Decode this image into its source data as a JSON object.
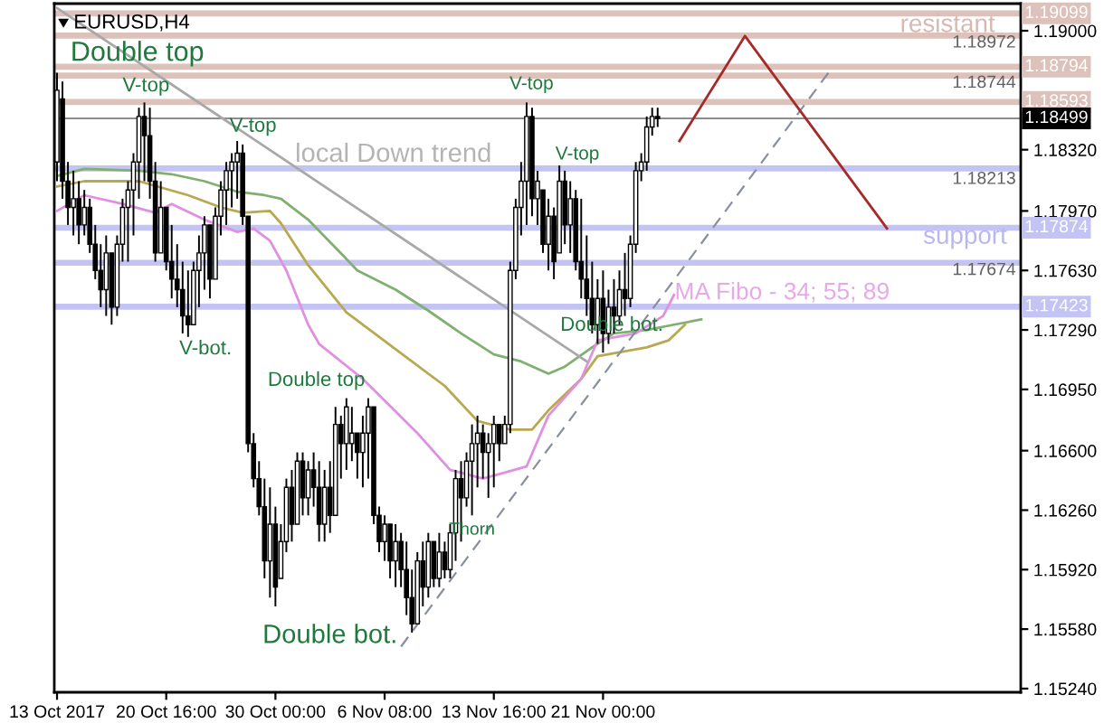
{
  "chart_data": {
    "type": "candlestick",
    "title": "EURUSD,H4",
    "color": "#000000",
    "categories": [
      "13 Oct 2017",
      null,
      null,
      null,
      null,
      null,
      null,
      null,
      null,
      null,
      null,
      null,
      null,
      null,
      null,
      null,
      null,
      null,
      null,
      null,
      "20 Oct 16:00",
      null,
      null,
      null,
      null,
      null,
      null,
      null,
      null,
      null,
      null,
      null,
      null,
      null,
      null,
      null,
      null,
      null,
      null,
      null,
      "30 Oct 00:00",
      null,
      null,
      null,
      null,
      null,
      null,
      null,
      null,
      null,
      null,
      null,
      null,
      null,
      null,
      null,
      null,
      null,
      null,
      null,
      "6 Nov 08:00",
      null,
      null,
      null,
      null,
      null,
      null,
      null,
      null,
      null,
      null,
      null,
      null,
      null,
      null,
      null,
      null,
      null,
      null,
      null,
      "13 Nov 16:00",
      null,
      null,
      null,
      null,
      null,
      null,
      null,
      null,
      null,
      null,
      null,
      null,
      null,
      null,
      null,
      null,
      null,
      null,
      null,
      "21 Nov 00:00",
      null,
      null,
      null,
      null,
      null,
      null,
      null,
      null,
      null,
      null,
      null,
      null,
      null,
      null,
      null,
      null,
      null,
      null,
      null,
      null,
      null,
      null,
      null,
      null,
      null,
      null,
      null,
      null,
      null,
      null,
      null,
      null,
      null,
      null,
      null,
      null,
      null,
      null,
      null,
      null,
      null,
      null,
      null,
      null,
      null,
      null,
      null,
      null,
      null,
      null,
      null,
      null,
      null,
      null,
      null,
      null,
      null,
      null,
      null,
      null,
      null,
      null,
      null,
      null,
      null,
      null,
      null,
      null,
      null,
      null,
      null,
      null,
      null,
      null,
      null,
      null
    ],
    "ohlc": [
      [
        1.1825,
        1.1876,
        1.1814,
        1.1866
      ],
      [
        1.1861,
        1.1871,
        1.1804,
        1.1814
      ],
      [
        1.1814,
        1.1825,
        1.1789,
        1.1799
      ],
      [
        1.1799,
        1.182,
        1.1783,
        1.1804
      ],
      [
        1.1804,
        1.1814,
        1.1778,
        1.1789
      ],
      [
        1.1789,
        1.1809,
        1.1783,
        1.1799
      ],
      [
        1.1799,
        1.1804,
        1.1773,
        1.1778
      ],
      [
        1.1778,
        1.1789,
        1.1758,
        1.1763
      ],
      [
        1.1763,
        1.1778,
        1.1742,
        1.1752
      ],
      [
        1.1752,
        1.1783,
        1.1737,
        1.1773
      ],
      [
        1.1773,
        1.1773,
        1.1732,
        1.1742
      ],
      [
        1.1742,
        1.1783,
        1.1737,
        1.1778
      ],
      [
        1.1778,
        1.1804,
        1.1768,
        1.1799
      ],
      [
        1.1799,
        1.1814,
        1.1768,
        1.1809
      ],
      [
        1.1809,
        1.183,
        1.1783,
        1.1825
      ],
      [
        1.1825,
        1.1856,
        1.1804,
        1.1851
      ],
      [
        1.1851,
        1.1859,
        1.1814,
        1.184
      ],
      [
        1.184,
        1.1856,
        1.1804,
        1.1814
      ],
      [
        1.1814,
        1.1825,
        1.1768,
        1.1773
      ],
      [
        1.1773,
        1.1814,
        1.1773,
        1.1799
      ],
      [
        1.1799,
        1.1799,
        1.1763,
        1.1768
      ],
      [
        1.1768,
        1.1789,
        1.1747,
        1.1758
      ],
      [
        1.1758,
        1.1778,
        1.1742,
        1.1752
      ],
      [
        1.1752,
        1.1768,
        1.1727,
        1.1737
      ],
      [
        1.1737,
        1.1763,
        1.1725,
        1.1732
      ],
      [
        1.1732,
        1.1768,
        1.1732,
        1.1763
      ],
      [
        1.1763,
        1.1783,
        1.1742,
        1.1773
      ],
      [
        1.1773,
        1.1794,
        1.1752,
        1.1789
      ],
      [
        1.1789,
        1.1789,
        1.1747,
        1.1758
      ],
      [
        1.1758,
        1.1799,
        1.1758,
        1.1794
      ],
      [
        1.1794,
        1.1814,
        1.1783,
        1.1809
      ],
      [
        1.1809,
        1.1825,
        1.1789,
        1.182
      ],
      [
        1.182,
        1.183,
        1.1799,
        1.1825
      ],
      [
        1.1825,
        1.1837,
        1.1804,
        1.183
      ],
      [
        1.183,
        1.1835,
        1.1789,
        1.1794
      ],
      [
        1.1794,
        1.1794,
        1.1659,
        1.1664
      ],
      [
        1.1664,
        1.167,
        1.1639,
        1.1644
      ],
      [
        1.1644,
        1.1654,
        1.1623,
        1.1628
      ],
      [
        1.1628,
        1.1644,
        1.1587,
        1.1597
      ],
      [
        1.1597,
        1.1639,
        1.1576,
        1.1618
      ],
      [
        1.1618,
        1.1628,
        1.1571,
        1.1582
      ],
      [
        1.1587,
        1.1618,
        1.1587,
        1.1608
      ],
      [
        1.1608,
        1.1644,
        1.1602,
        1.1639
      ],
      [
        1.1639,
        1.1649,
        1.1608,
        1.1618
      ],
      [
        1.1618,
        1.1659,
        1.1618,
        1.1654
      ],
      [
        1.1654,
        1.1659,
        1.1623,
        1.1633
      ],
      [
        1.1633,
        1.1654,
        1.1623,
        1.1649
      ],
      [
        1.1649,
        1.1659,
        1.1628,
        1.1639
      ],
      [
        1.1639,
        1.1654,
        1.1608,
        1.1618
      ],
      [
        1.1618,
        1.1649,
        1.1608,
        1.1639
      ],
      [
        1.1639,
        1.1654,
        1.1613,
        1.1623
      ],
      [
        1.1623,
        1.1685,
        1.1623,
        1.1675
      ],
      [
        1.1675,
        1.168,
        1.1644,
        1.1664
      ],
      [
        1.1664,
        1.169,
        1.1649,
        1.1685
      ],
      [
        1.1664,
        1.1685,
        1.1654,
        1.167
      ],
      [
        1.167,
        1.167,
        1.1644,
        1.1659
      ],
      [
        1.1659,
        1.168,
        1.1639,
        1.167
      ],
      [
        1.167,
        1.169,
        1.1644,
        1.1685
      ],
      [
        1.1685,
        1.1685,
        1.1618,
        1.1623
      ],
      [
        1.1623,
        1.1628,
        1.1602,
        1.1608
      ],
      [
        1.1608,
        1.1623,
        1.1597,
        1.1618
      ],
      [
        1.1618,
        1.1618,
        1.1587,
        1.1597
      ],
      [
        1.1597,
        1.1618,
        1.1582,
        1.1608
      ],
      [
        1.1608,
        1.1613,
        1.1582,
        1.1592
      ],
      [
        1.1592,
        1.1608,
        1.1566,
        1.1576
      ],
      [
        1.1576,
        1.1592,
        1.1556,
        1.1561
      ],
      [
        1.1561,
        1.1602,
        1.1561,
        1.1597
      ],
      [
        1.1597,
        1.1608,
        1.1571,
        1.1582
      ],
      [
        1.1582,
        1.1613,
        1.1576,
        1.1608
      ],
      [
        1.1608,
        1.1608,
        1.1582,
        1.1587
      ],
      [
        1.1587,
        1.1613,
        1.1582,
        1.1602
      ],
      [
        1.1602,
        1.1608,
        1.1587,
        1.1592
      ],
      [
        1.1592,
        1.1618,
        1.1587,
        1.1613
      ],
      [
        1.1613,
        1.1649,
        1.1597,
        1.1644
      ],
      [
        1.1644,
        1.1654,
        1.1608,
        1.1633
      ],
      [
        1.1633,
        1.1659,
        1.1628,
        1.1654
      ],
      [
        1.1654,
        1.1675,
        1.1623,
        1.1664
      ],
      [
        1.1664,
        1.168,
        1.1639,
        1.167
      ],
      [
        1.167,
        1.1675,
        1.1644,
        1.1659
      ],
      [
        1.1659,
        1.167,
        1.1633,
        1.1664
      ],
      [
        1.1664,
        1.168,
        1.1639,
        1.1675
      ],
      [
        1.1675,
        1.1675,
        1.1654,
        1.1664
      ],
      [
        1.1664,
        1.168,
        1.1664,
        1.1675
      ],
      [
        1.1675,
        1.1768,
        1.167,
        1.1763
      ],
      [
        1.1763,
        1.1804,
        1.1758,
        1.1799
      ],
      [
        1.1799,
        1.1825,
        1.1783,
        1.1814
      ],
      [
        1.1814,
        1.1859,
        1.1789,
        1.1851
      ],
      [
        1.1851,
        1.1856,
        1.1794,
        1.1804
      ],
      [
        1.1804,
        1.182,
        1.1789,
        1.1814
      ],
      [
        1.1809,
        1.1809,
        1.1773,
        1.1778
      ],
      [
        1.1778,
        1.1804,
        1.1763,
        1.1794
      ],
      [
        1.1794,
        1.1799,
        1.1758,
        1.1768
      ],
      [
        1.1773,
        1.1823,
        1.1773,
        1.1814
      ],
      [
        1.1814,
        1.182,
        1.1778,
        1.1789
      ],
      [
        1.1789,
        1.1814,
        1.1773,
        1.1804
      ],
      [
        1.1804,
        1.1809,
        1.1763,
        1.1768
      ],
      [
        1.1768,
        1.1804,
        1.1747,
        1.1758
      ],
      [
        1.1758,
        1.1783,
        1.1737,
        1.1747
      ],
      [
        1.1747,
        1.1768,
        1.1727,
        1.1732
      ],
      [
        1.1732,
        1.1758,
        1.1721,
        1.1747
      ],
      [
        1.1747,
        1.1763,
        1.1716,
        1.1727
      ],
      [
        1.1727,
        1.1752,
        1.1721,
        1.1742
      ],
      [
        1.1742,
        1.1758,
        1.1727,
        1.1737
      ],
      [
        1.1737,
        1.1763,
        1.1732,
        1.1752
      ],
      [
        1.1752,
        1.1773,
        1.1737,
        1.1747
      ],
      [
        1.1747,
        1.1783,
        1.1742,
        1.1778
      ],
      [
        1.1778,
        1.1825,
        1.1773,
        1.182
      ],
      [
        1.182,
        1.183,
        1.1814,
        1.1825
      ],
      [
        1.1825,
        1.1851,
        1.182,
        1.1845
      ],
      [
        1.1845,
        1.1856,
        1.184,
        1.1851
      ],
      [
        1.1851,
        1.1856,
        1.1845,
        1.18499
      ],
      null,
      null,
      null,
      null,
      null,
      null,
      null,
      null,
      null,
      null,
      null,
      null,
      null,
      null,
      null,
      null,
      null,
      null,
      null,
      null,
      null,
      null,
      null,
      null,
      null,
      null,
      null,
      null,
      null,
      null,
      null,
      null,
      null,
      null,
      null,
      null,
      null,
      null,
      null,
      null,
      null,
      null,
      null,
      null,
      null,
      null,
      null,
      null,
      null,
      null,
      null,
      null,
      null,
      null,
      null,
      null,
      null,
      null,
      null,
      null,
      null,
      null,
      null,
      null,
      null,
      null
    ],
    "series": [
      {
        "type": "line",
        "color": "#80b070",
        "values": [
          1.1817,
          null,
          null,
          null,
          null,
          1.1821,
          null,
          null,
          null,
          null,
          null,
          null,
          null,
          null,
          null,
          1.182,
          null,
          null,
          null,
          null,
          null,
          1.1818,
          null,
          null,
          null,
          null,
          null,
          1.1814,
          null,
          null,
          null,
          null,
          null,
          1.1808,
          null,
          null,
          null,
          null,
          1.1806,
          null,
          null,
          1.1804,
          null,
          null,
          null,
          null,
          1.1792,
          null,
          null,
          null,
          null,
          1.1776,
          null,
          null,
          null,
          1.1763,
          null,
          null,
          null,
          null,
          null,
          null,
          1.1752,
          null,
          null,
          null,
          null,
          null,
          1.174,
          null,
          null,
          null,
          null,
          null,
          1.1727,
          null,
          null,
          null,
          null,
          null,
          1.1715,
          null,
          null,
          null,
          null,
          1.1711,
          null,
          null,
          null,
          null,
          1.1704,
          null,
          null,
          1.1708,
          null,
          null,
          null,
          null,
          1.1719,
          null,
          null,
          null,
          1.1727,
          null,
          null,
          null,
          null,
          null,
          1.1729,
          null,
          null,
          null,
          null,
          1.1732,
          null,
          null,
          null,
          null,
          1.1735,
          null,
          null,
          null,
          null,
          null,
          null,
          null,
          null,
          null,
          null,
          null,
          null,
          null,
          null,
          null,
          null,
          null,
          null,
          null,
          null,
          null,
          null,
          null,
          null,
          null,
          null,
          null,
          null,
          null,
          null,
          null,
          null,
          null,
          null,
          null,
          null,
          null,
          null,
          null,
          null,
          null,
          null,
          null,
          null,
          null,
          null,
          null,
          null,
          null,
          null,
          null,
          null,
          null,
          null,
          null,
          null,
          null,
          null
        ]
      },
      {
        "type": "line",
        "color": "#b8a850",
        "values": [
          1.1811,
          null,
          null,
          null,
          null,
          1.1814,
          null,
          null,
          null,
          null,
          null,
          null,
          null,
          null,
          null,
          1.1814,
          null,
          null,
          null,
          null,
          null,
          null,
          null,
          null,
          1.1806,
          null,
          null,
          null,
          null,
          null,
          1.1799,
          null,
          null,
          null,
          1.1796,
          null,
          null,
          null,
          null,
          1.1797,
          null,
          1.179,
          null,
          null,
          null,
          null,
          1.1766,
          null,
          null,
          null,
          null,
          null,
          null,
          1.1739,
          null,
          null,
          null,
          null,
          null,
          null,
          null,
          null,
          1.1718,
          null,
          null,
          null,
          null,
          null,
          null,
          null,
          null,
          1.1697,
          null,
          null,
          null,
          null,
          null,
          1.1677,
          null,
          null,
          null,
          null,
          null,
          1.1672,
          null,
          null,
          null,
          1.1672,
          null,
          null,
          1.1683,
          null,
          null,
          null,
          null,
          null,
          1.1701,
          null,
          null,
          1.1714,
          null,
          null,
          null,
          null,
          null,
          null,
          null,
          null,
          1.1719,
          null,
          null,
          null,
          1.1723,
          null,
          null,
          1.1732,
          null,
          null,
          null,
          null,
          null,
          null,
          null,
          null,
          null,
          null,
          null,
          null,
          null,
          null,
          null,
          null,
          null,
          null,
          null,
          null,
          null,
          null,
          null,
          null,
          null,
          null,
          null,
          null,
          null,
          null,
          null,
          null,
          null,
          null,
          null,
          null,
          null,
          null,
          null,
          null,
          null,
          null,
          null,
          null,
          null,
          null,
          null,
          null,
          null,
          null,
          null,
          null,
          null,
          null,
          null,
          null,
          null,
          null,
          null,
          null,
          null
        ]
      },
      {
        "type": "line",
        "color": "#e090e0",
        "values": [
          1.1797,
          null,
          null,
          null,
          null,
          1.1806,
          null,
          null,
          null,
          null,
          null,
          null,
          1.1801,
          null,
          null,
          null,
          null,
          null,
          1.1796,
          null,
          null,
          1.1801,
          null,
          null,
          null,
          null,
          null,
          1.1792,
          null,
          null,
          null,
          null,
          null,
          1.1785,
          null,
          null,
          1.1787,
          null,
          null,
          1.178,
          null,
          null,
          1.1763,
          null,
          null,
          null,
          1.1732,
          null,
          1.1721,
          null,
          null,
          null,
          null,
          null,
          null,
          null,
          1.1701,
          null,
          null,
          null,
          null,
          null,
          null,
          null,
          null,
          null,
          1.167,
          null,
          null,
          null,
          null,
          null,
          1.1649,
          null,
          null,
          null,
          null,
          null,
          1.1644,
          null,
          null,
          null,
          null,
          null,
          null,
          null,
          1.1651,
          null,
          null,
          null,
          1.168,
          null,
          null,
          null,
          null,
          null,
          1.1701,
          null,
          null,
          1.1723,
          null,
          null,
          null,
          null,
          null,
          null,
          1.1727,
          null,
          null,
          null,
          null,
          1.1737,
          null,
          1.1749,
          null,
          null,
          null,
          null,
          null,
          null,
          null,
          null,
          null,
          null,
          null,
          null,
          null,
          null,
          null,
          null,
          null,
          null,
          null,
          null,
          null,
          null,
          null,
          null,
          null,
          null,
          null,
          null,
          null,
          null,
          null,
          null,
          null,
          null,
          null,
          null,
          null,
          null,
          null,
          null,
          null,
          null,
          null,
          null,
          null,
          null,
          null,
          null,
          null,
          null,
          null,
          null,
          null,
          null,
          null,
          null,
          null,
          null,
          null,
          null,
          null,
          null,
          null
        ]
      },
      {
        "type": "line",
        "color": "#a8a8a8",
        "values": [
          1.1913,
          null,
          null,
          null,
          null,
          null,
          null,
          null,
          null,
          null,
          null,
          null,
          null,
          null,
          null,
          null,
          null,
          null,
          null,
          null,
          null,
          null,
          null,
          null,
          null,
          null,
          null,
          null,
          null,
          null,
          null,
          null,
          null,
          null,
          null,
          null,
          null,
          null,
          null,
          null,
          null,
          null,
          null,
          null,
          null,
          null,
          null,
          null,
          null,
          null,
          null,
          null,
          null,
          null,
          null,
          null,
          null,
          null,
          null,
          null,
          null,
          null,
          null,
          null,
          null,
          null,
          null,
          null,
          null,
          null,
          null,
          null,
          null,
          null,
          null,
          null,
          null,
          null,
          null,
          null,
          null,
          null,
          null,
          null,
          null,
          null,
          null,
          null,
          null,
          null,
          null,
          null,
          null,
          null,
          null,
          null,
          null,
          1.1711,
          null,
          null,
          null,
          null,
          null,
          null,
          null,
          null,
          null,
          null,
          null,
          null,
          null,
          null,
          null,
          null,
          null,
          null,
          null,
          null,
          null,
          null,
          null,
          null,
          null,
          null,
          null,
          null,
          null,
          null,
          null,
          null,
          null,
          null,
          null,
          null,
          null,
          null,
          null,
          null,
          null,
          null,
          null,
          null,
          null,
          null,
          null,
          null,
          null,
          null,
          null,
          null,
          null,
          null,
          null,
          null,
          null,
          null,
          null,
          null,
          null,
          null,
          null,
          null,
          null,
          null,
          null,
          null,
          null,
          null,
          null,
          null,
          null,
          null,
          null,
          null,
          null,
          null,
          null
        ]
      },
      {
        "type": "line",
        "color": "#8890a0",
        "line_style": "dashed",
        "values": [
          null,
          null,
          null,
          null,
          null,
          null,
          null,
          null,
          null,
          null,
          null,
          null,
          null,
          null,
          null,
          null,
          null,
          null,
          null,
          null,
          null,
          null,
          null,
          null,
          null,
          null,
          null,
          null,
          null,
          null,
          null,
          null,
          null,
          null,
          null,
          null,
          null,
          null,
          null,
          null,
          null,
          null,
          null,
          null,
          null,
          null,
          null,
          null,
          null,
          null,
          null,
          null,
          null,
          null,
          null,
          null,
          null,
          null,
          null,
          null,
          null,
          null,
          null,
          1.1548,
          null,
          null,
          null,
          null,
          null,
          null,
          null,
          null,
          null,
          null,
          null,
          null,
          null,
          null,
          null,
          null,
          null,
          null,
          null,
          null,
          null,
          null,
          null,
          null,
          null,
          null,
          null,
          null,
          null,
          null,
          null,
          null,
          null,
          null,
          null,
          null,
          null,
          null,
          null,
          null,
          null,
          null,
          null,
          null,
          null,
          null,
          null,
          null,
          null,
          null,
          null,
          null,
          null,
          null,
          null,
          null,
          null,
          null,
          null,
          null,
          null,
          null,
          null,
          null,
          null,
          null,
          null,
          null,
          null,
          null,
          null,
          null,
          null,
          null,
          null,
          null,
          null,
          null,
          1.1879,
          null,
          null,
          null,
          null,
          null,
          null,
          null,
          null,
          null,
          null,
          null,
          null,
          null,
          null,
          null,
          null,
          null,
          null,
          null,
          null,
          null,
          null,
          null,
          null,
          null,
          null,
          null,
          null,
          null,
          null,
          null,
          null,
          null,
          null
        ]
      },
      {
        "type": "line",
        "color": "#a52a2a",
        "values": [
          null,
          null,
          null,
          null,
          null,
          null,
          null,
          null,
          null,
          null,
          null,
          null,
          null,
          null,
          null,
          null,
          null,
          null,
          null,
          null,
          null,
          null,
          null,
          null,
          null,
          null,
          null,
          null,
          null,
          null,
          null,
          null,
          null,
          null,
          null,
          null,
          null,
          null,
          null,
          null,
          null,
          null,
          null,
          null,
          null,
          null,
          null,
          null,
          null,
          null,
          null,
          null,
          null,
          null,
          null,
          null,
          null,
          null,
          null,
          null,
          null,
          null,
          null,
          null,
          null,
          null,
          null,
          null,
          null,
          null,
          null,
          null,
          null,
          null,
          null,
          null,
          null,
          null,
          null,
          null,
          null,
          null,
          null,
          null,
          null,
          null,
          null,
          null,
          null,
          null,
          null,
          null,
          null,
          null,
          null,
          null,
          null,
          null,
          null,
          null,
          null,
          null,
          null,
          null,
          null,
          null,
          null,
          null,
          null,
          null,
          null,
          null,
          null,
          null,
          1.1837,
          null,
          null,
          null,
          null,
          null,
          null,
          null,
          null,
          null,
          null,
          null,
          1.1897,
          null,
          null,
          null,
          null,
          null,
          null,
          null,
          null,
          null,
          null,
          null,
          null,
          null,
          null,
          null,
          null,
          null,
          null,
          null,
          null,
          null,
          null,
          null,
          null,
          null,
          1.1787,
          null,
          null,
          null,
          null,
          null,
          null,
          null,
          null,
          null,
          null,
          null,
          null,
          null,
          null,
          null,
          null,
          null,
          null,
          null,
          null,
          null,
          null,
          null,
          null
        ]
      }
    ],
    "ylim": [
      1.15219,
      1.19155
    ],
    "yticks": [
      {
        "value": 1.1524,
        "label": "1.15240"
      },
      {
        "value": 1.1558,
        "label": "1.15580"
      },
      {
        "value": 1.1592,
        "label": "1.15920"
      },
      {
        "value": 1.1626,
        "label": "1.16260"
      },
      {
        "value": 1.166,
        "label": "1.16600"
      },
      {
        "value": 1.1695,
        "label": "1.16950"
      },
      {
        "value": 1.1729,
        "label": "1.17290"
      },
      {
        "value": 1.1763,
        "label": "1.17630"
      },
      {
        "value": 1.1797,
        "label": "1.17970"
      },
      {
        "value": 1.1832,
        "label": "1.18320"
      },
      {
        "value": 1.19,
        "label": "1.19000"
      }
    ],
    "ref_lines": [
      {
        "axis": "y",
        "value": 1.19099,
        "label": "1.19099",
        "color": "#dcc2ba"
      },
      {
        "axis": "y",
        "value": 1.18972,
        "color": "#dcc2ba"
      },
      {
        "axis": "y",
        "value": 1.18794,
        "label": "1.18794",
        "color": "#dcc2ba"
      },
      {
        "axis": "y",
        "value": 1.18744,
        "color": "#dcc2ba"
      },
      {
        "axis": "y",
        "value": 1.18593,
        "label": "1.18593",
        "color": "#dcc2ba"
      },
      {
        "axis": "y",
        "value": 1.18499,
        "label": "1.18499",
        "color": "#000000"
      },
      {
        "axis": "y",
        "value": 1.18213,
        "color": "#c4c4f4"
      },
      {
        "axis": "y",
        "value": 1.17874,
        "label": "1.17874",
        "color": "#c4c4f4"
      },
      {
        "axis": "y",
        "value": 1.17674,
        "color": "#c4c4f4"
      },
      {
        "axis": "y",
        "value": 1.17423,
        "label": "1.17423",
        "color": "#c4c4f4"
      }
    ],
    "annotations": [
      {
        "text": "Double top",
        "y": 1.1859
      },
      {
        "text": "V-top",
        "y": 1.1859
      },
      {
        "text": "V-top",
        "y": 1.1837
      },
      "V-bot.",
      "local Down trend",
      "Double top",
      "Double bot.",
      {
        "text": "Thorn",
        "y": 1.1628
      },
      {
        "text": "V-top",
        "y": 1.1859
      },
      {
        "text": "V-top",
        "y": 1.1823
      },
      {
        "text": "Double bot.",
        "y": 1.1716
      },
      "resistant",
      "support",
      "MA Fibo - 34; 55; 89",
      "1.18972",
      "1.18744",
      "1.18213",
      "1.17674"
    ]
  }
}
